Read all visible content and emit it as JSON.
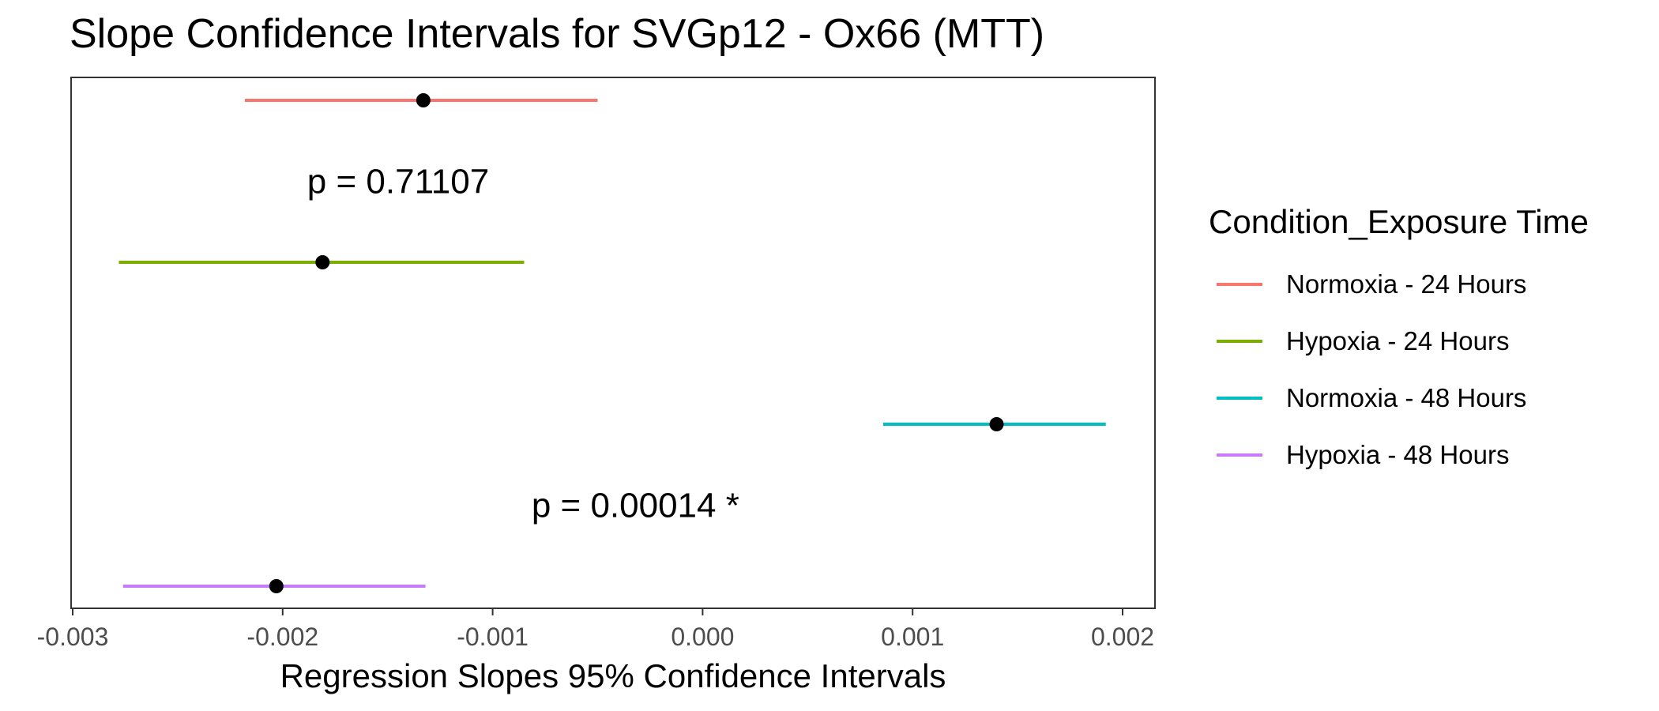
{
  "chart_data": {
    "type": "errorbar",
    "title": "Slope Confidence Intervals for SVGp12 - Ox66 (MTT)",
    "xlabel": "Regression Slopes 95% Confidence Intervals",
    "ylabel": "",
    "xlim": [
      -0.003,
      0.002
    ],
    "xticks": [
      -0.003,
      -0.002,
      -0.001,
      0.0,
      0.001,
      0.002
    ],
    "xtick_labels": [
      "-0.003",
      "-0.002",
      "-0.001",
      "0.000",
      "0.001",
      "0.002"
    ],
    "grid": false,
    "legend_placement": "right",
    "legend_title": "Condition_Exposure Time",
    "series": [
      {
        "name": "Normoxia - 24 Hours",
        "estimate": -0.00133,
        "lower": -0.00218,
        "upper": -0.0005,
        "color": "#F8766D"
      },
      {
        "name": "Hypoxia - 24 Hours",
        "estimate": -0.00181,
        "lower": -0.00278,
        "upper": -0.00085,
        "color": "#7CAE00"
      },
      {
        "name": "Normoxia - 48 Hours",
        "estimate": 0.0014,
        "lower": 0.00086,
        "upper": 0.00192,
        "color": "#00BFC4"
      },
      {
        "name": "Hypoxia - 48 Hours",
        "estimate": -0.00203,
        "lower": -0.00276,
        "upper": -0.00132,
        "color": "#C77CFF"
      }
    ],
    "annotations": [
      {
        "text": "p = 0.71107",
        "x": -0.00145,
        "between": [
          "Normoxia - 24 Hours",
          "Hypoxia - 24 Hours"
        ]
      },
      {
        "text": "p = 0.00014 *",
        "x": -0.00032,
        "between": [
          "Normoxia - 48 Hours",
          "Hypoxia - 48 Hours"
        ]
      }
    ]
  }
}
